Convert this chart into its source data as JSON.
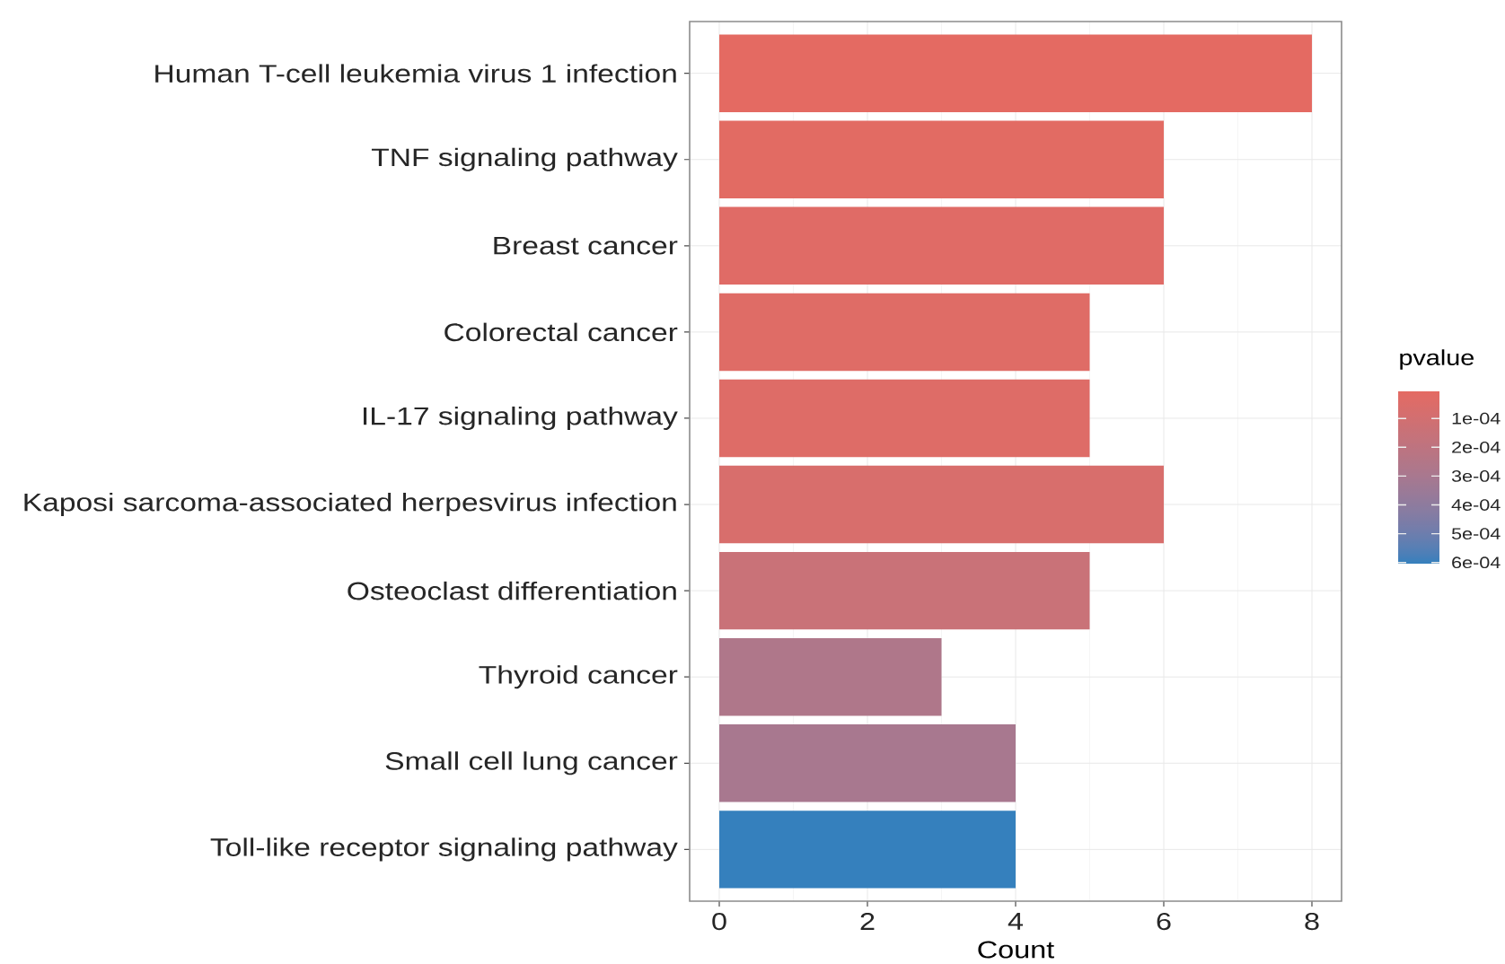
{
  "chart_data": {
    "type": "bar",
    "orientation": "horizontal",
    "categories": [
      "Human T-cell leukemia virus 1 infection",
      "TNF signaling pathway",
      "Breast cancer",
      "Colorectal cancer",
      "IL-17 signaling pathway",
      "Kaposi sarcoma-associated herpesvirus infection",
      "Osteoclast differentiation",
      "Thyroid cancer",
      "Small cell lung cancer",
      "Toll-like receptor signaling pathway"
    ],
    "values": [
      8,
      6,
      6,
      5,
      5,
      6,
      5,
      3,
      4,
      4
    ],
    "cvalues": [
      6e-06,
      1.5e-05,
      3e-05,
      3.5e-05,
      4e-05,
      7e-05,
      0.00015,
      0.00027,
      0.0003,
      0.000604
    ],
    "clabel": "pvalue",
    "clim": [
      0.000604,
      6e-06
    ],
    "cticks": [
      {
        "value": 0.0001,
        "label": "1e-04"
      },
      {
        "value": 0.0002,
        "label": "2e-04"
      },
      {
        "value": 0.0003,
        "label": "3e-04"
      },
      {
        "value": 0.0004,
        "label": "4e-04"
      },
      {
        "value": 0.0005,
        "label": "5e-04"
      },
      {
        "value": 0.0006,
        "label": "6e-04"
      }
    ],
    "xlabel": "Count",
    "xlim": [
      -0.4,
      8.4
    ],
    "xticks": [
      0,
      2,
      4,
      6,
      8
    ],
    "grid": true
  }
}
